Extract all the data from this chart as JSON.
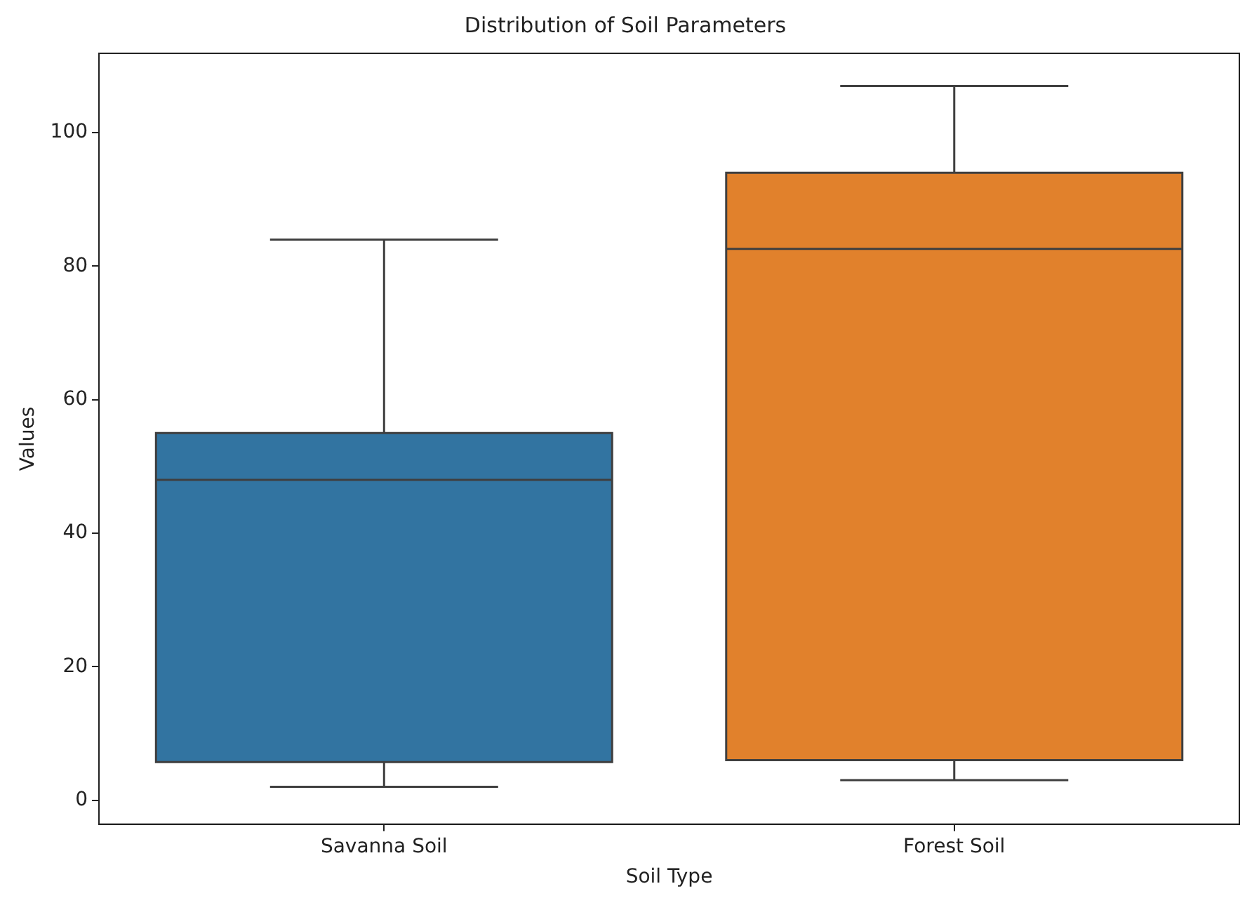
{
  "chart_data": {
    "type": "box",
    "title": "Distribution of Soil Parameters",
    "xlabel": "Soil Type",
    "ylabel": "Values",
    "categories": [
      "Savanna Soil",
      "Forest Soil"
    ],
    "colors": [
      "#3274a1",
      "#e1812c"
    ],
    "boxes": [
      {
        "low": 2,
        "q1": 5.7,
        "median": 48,
        "q3": 55,
        "high": 84
      },
      {
        "low": 3,
        "q1": 6,
        "median": 82.6,
        "q3": 94,
        "high": 107
      }
    ],
    "ylim": [
      -3.6,
      111.9
    ],
    "yticks": [
      0,
      20,
      40,
      60,
      80,
      100
    ],
    "grid": false,
    "legend": false
  }
}
